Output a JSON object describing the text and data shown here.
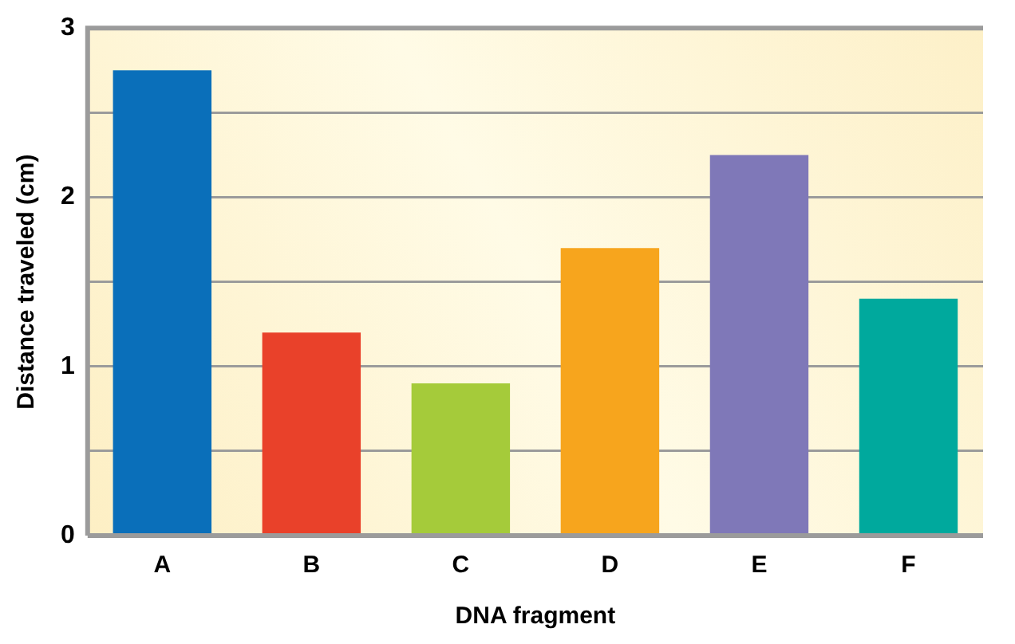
{
  "chart_data": {
    "type": "bar",
    "xlabel": "DNA fragment",
    "ylabel": "Distance traveled (cm)",
    "categories": [
      "A",
      "B",
      "C",
      "D",
      "E",
      "F"
    ],
    "values": [
      2.75,
      1.2,
      0.9,
      1.7,
      2.25,
      1.4
    ],
    "colors": [
      "#0a6fba",
      "#e9412a",
      "#a5cb3a",
      "#f7a51d",
      "#7f78b8",
      "#00a99d"
    ],
    "ylim": [
      0,
      3
    ],
    "yticks": [
      0,
      {
        "value": 0.5,
        "label": null
      },
      1,
      {
        "value": 1.5,
        "label": null
      },
      2,
      {
        "value": 2.5,
        "label": null
      },
      3
    ],
    "grid": "y",
    "legend": false
  }
}
